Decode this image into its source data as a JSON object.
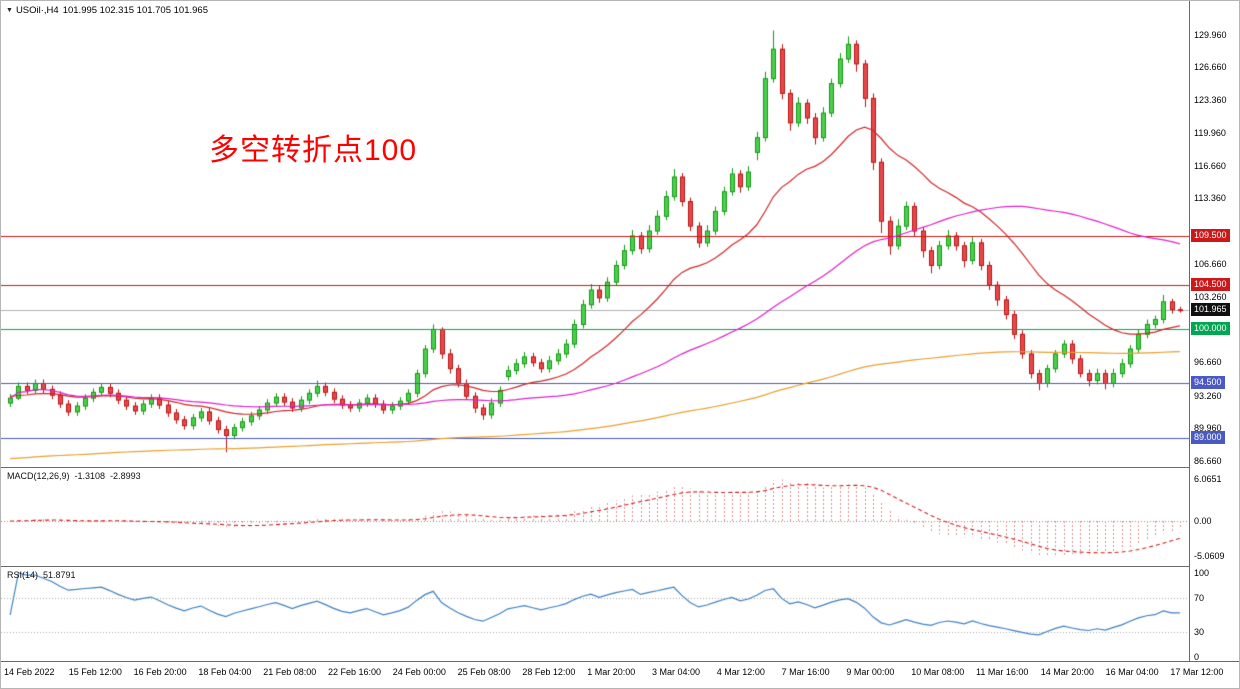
{
  "header": {
    "marker": "▼",
    "symbol": "USOil·,H4",
    "ohlc": "101.995 102.315 101.705 101.965"
  },
  "annotation": {
    "text": "多空转折点100",
    "color": "#ff0000"
  },
  "chart_data": {
    "type": "candlestick",
    "symbol": "USOil",
    "timeframe": "H4",
    "title": "USOil H4 candlestick chart with MACD and RSI",
    "ohlc_display": {
      "open": "101.995",
      "high": "102.315",
      "low": "101.705",
      "close": "101.965"
    },
    "y_range": [
      86.0,
      133.4
    ],
    "current_price": {
      "value": 101.965,
      "label": "101.965"
    },
    "colors": {
      "up_fill": "#4ccf4c",
      "up_stroke": "#159a15",
      "down_fill": "#e84848",
      "down_stroke": "#bb1515",
      "current_price_line": "#b0b0b0",
      "background": "#ffffff"
    },
    "horizontal_lines": [
      {
        "price": 109.5,
        "color": "#cc1818"
      },
      {
        "price": 104.5,
        "color": "#cc1818"
      },
      {
        "price": 100.0,
        "color": "#00a651"
      },
      {
        "price": 94.5,
        "color": "#4a5ac2"
      },
      {
        "price": 89.0,
        "color": "#4a5ac2"
      }
    ],
    "moving_averages": [
      {
        "name": "ma-fast",
        "type": "ema",
        "period": 21,
        "seed": 93.2,
        "color": "#d02828"
      },
      {
        "name": "ma-mid",
        "type": "sma",
        "period": 55,
        "seed": null,
        "color": "#dd22cc"
      },
      {
        "name": "ma-slow",
        "type": "ema",
        "period": 250,
        "seed": 86.8,
        "color": "#e8a030"
      }
    ],
    "y_axis_labels": [
      {
        "text": "129.960",
        "price": 129.96,
        "style": "plain"
      },
      {
        "text": "126.660",
        "price": 126.66,
        "style": "plain"
      },
      {
        "text": "123.360",
        "price": 123.36,
        "style": "plain"
      },
      {
        "text": "119.960",
        "price": 119.96,
        "style": "plain"
      },
      {
        "text": "116.660",
        "price": 116.66,
        "style": "plain"
      },
      {
        "text": "113.360",
        "price": 113.36,
        "style": "plain"
      },
      {
        "text": "109.500",
        "price": 109.5,
        "style": "red"
      },
      {
        "text": "106.660",
        "price": 106.66,
        "style": "plain"
      },
      {
        "text": "104.500",
        "price": 104.5,
        "style": "red"
      },
      {
        "text": "103.260",
        "price": 103.26,
        "style": "plain"
      },
      {
        "text": "101.965",
        "price": 101.965,
        "style": "current"
      },
      {
        "text": "100.000",
        "price": 100.0,
        "style": "green"
      },
      {
        "text": "96.660",
        "price": 96.66,
        "style": "plain"
      },
      {
        "text": "94.500",
        "price": 94.5,
        "style": "blue"
      },
      {
        "text": "93.260",
        "price": 93.26,
        "style": "plain"
      },
      {
        "text": "89.960",
        "price": 89.96,
        "style": "plain"
      },
      {
        "text": "89.000",
        "price": 89.0,
        "style": "blue"
      },
      {
        "text": "86.660",
        "price": 86.66,
        "style": "plain"
      }
    ],
    "x_labels": [
      "14 Feb 2022",
      "15 Feb 12:00",
      "16 Feb 20:00",
      "18 Feb 04:00",
      "21 Feb 08:00",
      "22 Feb 16:00",
      "24 Feb 00:00",
      "25 Feb 08:00",
      "28 Feb 12:00",
      "1 Mar 20:00",
      "3 Mar 04:00",
      "4 Mar 12:00",
      "7 Mar 16:00",
      "9 Mar 00:00",
      "10 Mar 08:00",
      "11 Mar 16:00",
      "14 Mar 20:00",
      "16 Mar 04:00",
      "17 Mar 12:00"
    ],
    "macd": {
      "label": "MACD(12,26,9)",
      "value_main": "-1.3108",
      "value_signal": "-2.8993",
      "fast": 12,
      "slow": 26,
      "signal": 9,
      "scale": [
        "6.0651",
        "0.00",
        "-5.0609"
      ],
      "histogram_color": "#e09090",
      "signal_color": "#d02020"
    },
    "rsi": {
      "label": "RSI(14)",
      "value": "51.8791",
      "period": 14,
      "color": "#4080c0",
      "levels": [
        70,
        30
      ],
      "scale": [
        "100",
        "70",
        "30",
        "0"
      ]
    },
    "candles": [
      [
        92.5,
        93.4,
        92.1,
        93.0
      ],
      [
        93.0,
        94.6,
        92.8,
        94.2
      ],
      [
        94.2,
        94.6,
        93.4,
        93.8
      ],
      [
        93.8,
        94.9,
        93.5,
        94.5
      ],
      [
        94.5,
        94.9,
        93.5,
        93.9
      ],
      [
        93.9,
        94.3,
        92.9,
        93.3
      ],
      [
        93.3,
        93.7,
        92.0,
        92.4
      ],
      [
        92.4,
        92.8,
        91.2,
        91.6
      ],
      [
        91.6,
        92.6,
        91.2,
        92.2
      ],
      [
        92.2,
        93.4,
        91.8,
        93.0
      ],
      [
        93.0,
        94.0,
        92.6,
        93.6
      ],
      [
        93.6,
        94.5,
        93.2,
        94.1
      ],
      [
        94.1,
        94.5,
        93.1,
        93.5
      ],
      [
        93.5,
        93.9,
        92.4,
        92.8
      ],
      [
        92.8,
        93.2,
        91.8,
        92.2
      ],
      [
        92.2,
        92.6,
        91.3,
        91.7
      ],
      [
        91.7,
        92.8,
        91.3,
        92.4
      ],
      [
        92.4,
        93.4,
        92.0,
        93.0
      ],
      [
        93.0,
        93.4,
        91.9,
        92.3
      ],
      [
        92.3,
        92.7,
        91.1,
        91.5
      ],
      [
        91.5,
        91.9,
        90.4,
        90.8
      ],
      [
        90.8,
        91.2,
        89.8,
        90.2
      ],
      [
        90.2,
        91.4,
        89.8,
        91.0
      ],
      [
        91.0,
        92.0,
        90.6,
        91.6
      ],
      [
        91.6,
        92.0,
        90.3,
        90.7
      ],
      [
        90.7,
        91.1,
        89.4,
        89.8
      ],
      [
        89.8,
        90.2,
        87.5,
        89.2
      ],
      [
        89.2,
        90.4,
        88.8,
        90.0
      ],
      [
        90.0,
        91.0,
        89.6,
        90.6
      ],
      [
        90.6,
        91.6,
        90.2,
        91.2
      ],
      [
        91.2,
        92.2,
        90.8,
        91.8
      ],
      [
        91.8,
        92.9,
        91.4,
        92.5
      ],
      [
        92.5,
        93.5,
        92.1,
        93.1
      ],
      [
        93.1,
        93.5,
        92.2,
        92.6
      ],
      [
        92.6,
        93.0,
        91.6,
        92.0
      ],
      [
        92.0,
        93.2,
        91.6,
        92.8
      ],
      [
        92.8,
        93.9,
        92.4,
        93.5
      ],
      [
        93.5,
        94.8,
        93.1,
        94.2
      ],
      [
        94.2,
        94.6,
        93.2,
        93.6
      ],
      [
        93.6,
        94.0,
        92.5,
        92.9
      ],
      [
        92.9,
        93.3,
        91.9,
        92.3
      ],
      [
        92.3,
        92.7,
        91.6,
        92.0
      ],
      [
        92.0,
        92.9,
        91.6,
        92.5
      ],
      [
        92.5,
        93.4,
        92.1,
        93.0
      ],
      [
        93.0,
        93.4,
        92.0,
        92.4
      ],
      [
        92.4,
        92.8,
        91.4,
        91.8
      ],
      [
        91.8,
        92.6,
        91.4,
        92.2
      ],
      [
        92.2,
        93.1,
        91.8,
        92.7
      ],
      [
        92.7,
        93.9,
        92.3,
        93.5
      ],
      [
        93.5,
        95.9,
        93.1,
        95.5
      ],
      [
        95.5,
        98.4,
        95.1,
        98.0
      ],
      [
        98.0,
        100.5,
        97.6,
        100.0
      ],
      [
        100.0,
        100.2,
        97.0,
        97.5
      ],
      [
        97.5,
        98.0,
        95.5,
        96.0
      ],
      [
        96.0,
        96.4,
        94.1,
        94.5
      ],
      [
        94.5,
        94.9,
        92.8,
        93.2
      ],
      [
        93.2,
        93.6,
        91.5,
        92.0
      ],
      [
        92.0,
        92.4,
        90.8,
        91.3
      ],
      [
        91.3,
        93.0,
        90.9,
        92.5
      ],
      [
        92.5,
        94.2,
        92.1,
        93.8
      ],
      [
        95.2,
        96.3,
        94.8,
        95.8
      ],
      [
        95.8,
        97.0,
        95.4,
        96.5
      ],
      [
        96.5,
        97.7,
        96.1,
        97.2
      ],
      [
        97.2,
        97.6,
        96.2,
        96.6
      ],
      [
        96.6,
        97.0,
        95.6,
        96.0
      ],
      [
        96.0,
        97.3,
        95.6,
        96.8
      ],
      [
        96.8,
        98.0,
        96.4,
        97.5
      ],
      [
        97.5,
        99.0,
        97.1,
        98.5
      ],
      [
        98.5,
        101.0,
        98.1,
        100.5
      ],
      [
        100.5,
        103.0,
        100.1,
        102.5
      ],
      [
        102.5,
        104.6,
        102.1,
        104.0
      ],
      [
        104.0,
        104.5,
        102.7,
        103.2
      ],
      [
        103.2,
        105.3,
        102.8,
        104.8
      ],
      [
        104.8,
        107.0,
        104.4,
        106.5
      ],
      [
        106.5,
        108.6,
        106.1,
        108.0
      ],
      [
        108.0,
        110.1,
        107.6,
        109.5
      ],
      [
        109.5,
        109.9,
        107.7,
        108.2
      ],
      [
        108.2,
        110.6,
        107.8,
        110.0
      ],
      [
        110.0,
        112.1,
        109.6,
        111.5
      ],
      [
        111.5,
        114.1,
        111.1,
        113.5
      ],
      [
        113.5,
        116.3,
        113.1,
        115.5
      ],
      [
        115.5,
        115.9,
        112.5,
        113.0
      ],
      [
        113.0,
        113.4,
        110.0,
        110.5
      ],
      [
        110.5,
        110.9,
        108.3,
        108.8
      ],
      [
        108.8,
        110.6,
        108.4,
        110.0
      ],
      [
        110.0,
        112.5,
        109.6,
        112.0
      ],
      [
        112.0,
        114.5,
        111.6,
        114.0
      ],
      [
        114.0,
        116.4,
        113.6,
        115.8
      ],
      [
        115.8,
        116.2,
        113.9,
        114.5
      ],
      [
        114.5,
        116.6,
        114.1,
        116.0
      ],
      [
        118.0,
        120.1,
        117.2,
        119.5
      ],
      [
        119.5,
        126.2,
        119.1,
        125.5
      ],
      [
        125.5,
        130.4,
        125.1,
        128.5
      ],
      [
        128.5,
        129.0,
        123.4,
        124.0
      ],
      [
        124.0,
        124.4,
        120.2,
        121.0
      ],
      [
        121.0,
        123.6,
        120.6,
        123.0
      ],
      [
        123.0,
        123.4,
        120.9,
        121.5
      ],
      [
        121.5,
        122.0,
        118.8,
        119.5
      ],
      [
        119.5,
        122.6,
        119.1,
        122.0
      ],
      [
        122.0,
        125.5,
        121.6,
        125.0
      ],
      [
        125.0,
        128.1,
        124.6,
        127.5
      ],
      [
        127.5,
        129.8,
        127.1,
        129.0
      ],
      [
        129.0,
        129.4,
        126.2,
        127.0
      ],
      [
        127.0,
        127.4,
        122.6,
        123.5
      ],
      [
        123.5,
        124.0,
        116.2,
        117.0
      ],
      [
        117.0,
        117.4,
        109.8,
        111.0
      ],
      [
        111.0,
        111.5,
        107.6,
        108.5
      ],
      [
        108.5,
        111.2,
        108.1,
        110.5
      ],
      [
        110.5,
        113.0,
        110.1,
        112.5
      ],
      [
        112.5,
        112.9,
        109.4,
        110.0
      ],
      [
        110.0,
        110.4,
        107.3,
        108.0
      ],
      [
        108.0,
        108.4,
        105.7,
        106.5
      ],
      [
        106.5,
        109.0,
        106.1,
        108.5
      ],
      [
        108.5,
        110.1,
        108.1,
        109.5
      ],
      [
        109.5,
        109.9,
        108.0,
        108.5
      ],
      [
        108.5,
        108.9,
        106.3,
        107.0
      ],
      [
        107.0,
        109.4,
        106.6,
        108.8
      ],
      [
        108.8,
        109.2,
        106.0,
        106.5
      ],
      [
        106.5,
        106.9,
        104.0,
        104.5
      ],
      [
        104.5,
        104.9,
        102.4,
        103.0
      ],
      [
        103.0,
        103.4,
        101.0,
        101.5
      ],
      [
        101.5,
        101.9,
        99.0,
        99.5
      ],
      [
        99.5,
        99.9,
        97.0,
        97.5
      ],
      [
        97.5,
        97.9,
        95.0,
        95.5
      ],
      [
        95.5,
        95.9,
        93.8,
        94.5
      ],
      [
        94.5,
        96.4,
        94.1,
        96.0
      ],
      [
        96.0,
        97.9,
        95.6,
        97.5
      ],
      [
        97.5,
        98.9,
        97.1,
        98.5
      ],
      [
        98.5,
        98.9,
        96.5,
        97.0
      ],
      [
        97.0,
        97.4,
        95.1,
        95.5
      ],
      [
        95.5,
        95.9,
        94.2,
        94.8
      ],
      [
        94.8,
        96.0,
        94.4,
        95.5
      ],
      [
        95.5,
        95.9,
        93.9,
        94.5
      ],
      [
        94.5,
        96.0,
        94.1,
        95.5
      ],
      [
        95.5,
        97.0,
        95.1,
        96.5
      ],
      [
        96.5,
        98.4,
        96.1,
        98.0
      ],
      [
        98.0,
        100.0,
        97.6,
        99.5
      ],
      [
        99.5,
        101.0,
        99.1,
        100.5
      ],
      [
        100.5,
        101.4,
        100.1,
        101.0
      ],
      [
        101.0,
        103.5,
        100.6,
        102.8
      ],
      [
        102.8,
        103.1,
        101.6,
        102.0
      ],
      [
        102.0,
        102.3,
        101.7,
        101.965
      ]
    ]
  }
}
